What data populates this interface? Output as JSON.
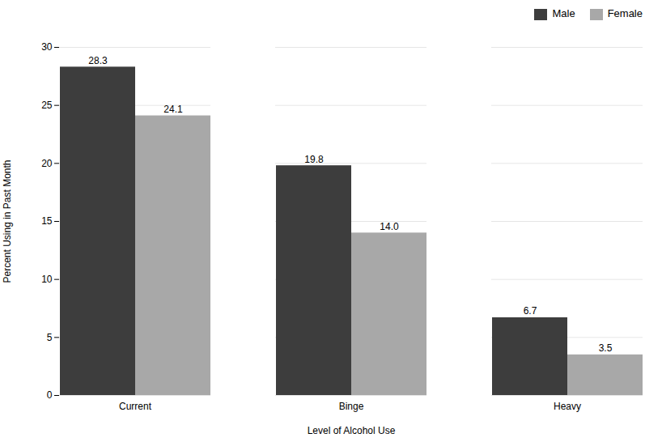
{
  "chart_data": {
    "type": "bar",
    "categories": [
      "Current",
      "Binge",
      "Heavy"
    ],
    "series": [
      {
        "name": "Male",
        "color": "#3d3d3d",
        "values": [
          28.3,
          19.8,
          6.7
        ],
        "value_labels": [
          "28.3",
          "19.8",
          "6.7"
        ]
      },
      {
        "name": "Female",
        "color": "#a8a8a8",
        "values": [
          24.1,
          14.0,
          3.5
        ],
        "value_labels": [
          "24.1",
          "14.0",
          "3.5"
        ]
      }
    ],
    "xlabel": "Level of Alcohol Use",
    "ylabel": "Percent Using in Past Month",
    "ylim": [
      0,
      30
    ],
    "yticks": [
      0,
      5,
      10,
      15,
      20,
      25,
      30
    ],
    "grid": true,
    "legend": "upper right",
    "data_labels": true
  }
}
